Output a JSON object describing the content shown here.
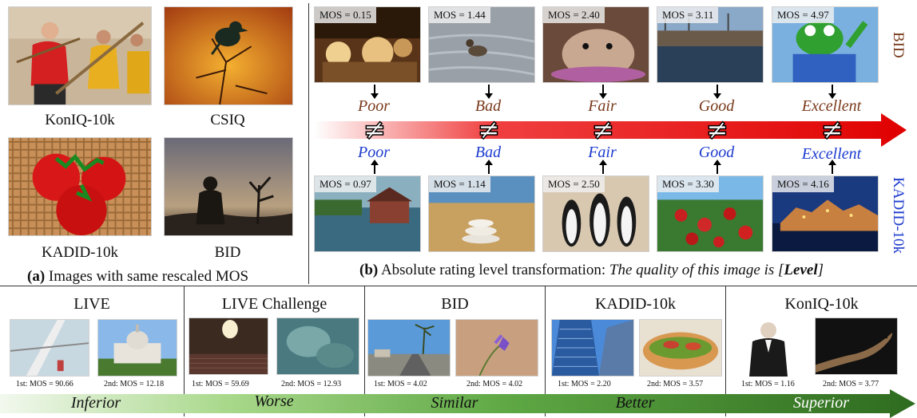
{
  "panel_a": {
    "datasets": [
      {
        "name": "KonIQ-10k"
      },
      {
        "name": "CSIQ"
      },
      {
        "name": "KADID-10k"
      },
      {
        "name": "BID"
      }
    ],
    "caption_label": "(a)",
    "caption_text": "Images with same rescaled MOS"
  },
  "panel_b": {
    "caption_label": "(b)",
    "caption_text": "Absolute rating level transformation:",
    "caption_prompt": "The quality of this image is [",
    "caption_level": "Level",
    "caption_end": "]",
    "top_dataset": "BID",
    "bottom_dataset": "KADID-10k",
    "top_row": [
      {
        "mos": "MOS = 0.15",
        "level": "Poor"
      },
      {
        "mos": "MOS = 1.44",
        "level": "Bad"
      },
      {
        "mos": "MOS = 2.40",
        "level": "Fair"
      },
      {
        "mos": "MOS = 3.11",
        "level": "Good"
      },
      {
        "mos": "MOS = 4.97",
        "level": "Excellent"
      }
    ],
    "bottom_row": [
      {
        "mos": "MOS = 0.97",
        "level": "Poor"
      },
      {
        "mos": "MOS = 1.14",
        "level": "Bad"
      },
      {
        "mos": "MOS = 2.50",
        "level": "Fair"
      },
      {
        "mos": "MOS = 3.30",
        "level": "Good"
      },
      {
        "mos": "MOS = 4.16",
        "level": "Excellent"
      }
    ],
    "neq_symbol": "≠",
    "arrow_color": "#e00000",
    "top_level_color": "#7a3b1d",
    "bottom_level_color": "#1e3ccf"
  },
  "bottom_strip": {
    "groups": [
      {
        "dataset": "LIVE",
        "first": "1st: MOS = 90.66",
        "second": "2nd: MOS = 12.18",
        "comparison": "Inferior"
      },
      {
        "dataset": "LIVE Challenge",
        "first": "1st: MOS = 59.69",
        "second": "2nd: MOS = 12.93",
        "comparison": "Worse"
      },
      {
        "dataset": "BID",
        "first": "1st: MOS = 4.02",
        "second": "2nd: MOS = 4.02",
        "comparison": "Similar"
      },
      {
        "dataset": "KADID-10k",
        "first": "1st: MOS = 2.20",
        "second": "2nd: MOS = 3.57",
        "comparison": "Better"
      },
      {
        "dataset": "KonIQ-10k",
        "first": "1st: MOS = 1.16",
        "second": "2nd: MOS = 3.77",
        "comparison": "Superior"
      }
    ],
    "arrow_color": "#2e6b1f"
  }
}
